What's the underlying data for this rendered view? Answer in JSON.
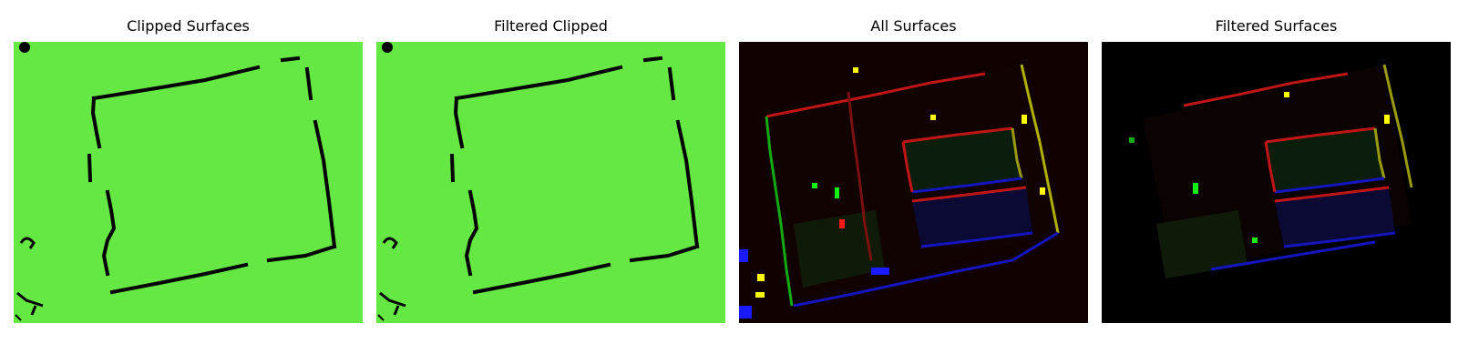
{
  "figure": {
    "panels": [
      {
        "title": "Clipped Surfaces",
        "background": "#66e844",
        "line_color": "#000000"
      },
      {
        "title": "Filtered Clipped",
        "background": "#66e844",
        "line_color": "#000000"
      },
      {
        "title": "All Surfaces",
        "background": "#100000",
        "colors": [
          "#ff1a1a",
          "#1a1aff",
          "#ffff00",
          "#11dd11",
          "#0b3b0b",
          "#0a0a3a",
          "#3a3a0a"
        ]
      },
      {
        "title": "Filtered Surfaces",
        "background": "#000000",
        "colors": [
          "#ff1a1a",
          "#1a1aff",
          "#ffff00",
          "#11dd11",
          "#0b3b0b",
          "#0a0a3a",
          "#3a3a0a"
        ]
      }
    ]
  }
}
